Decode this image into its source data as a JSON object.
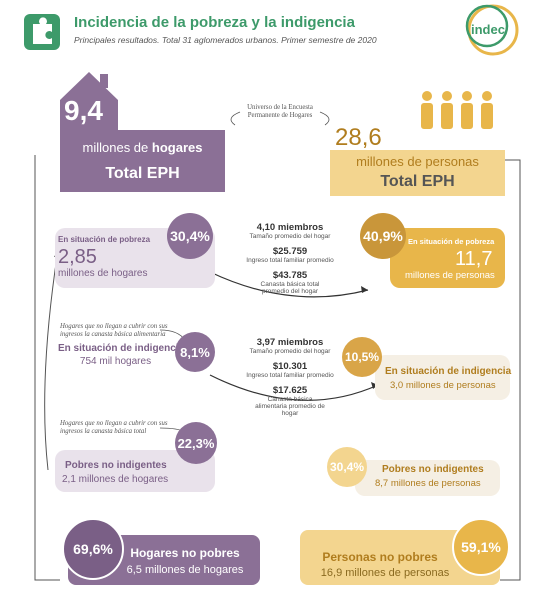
{
  "header": {
    "title": "Incidencia de la pobreza y la indigencia",
    "subtitle": "Principales resultados. Total 31 aglomerados urbanos. Primer semestre de 2020",
    "logo": "indec"
  },
  "hogares_total": {
    "value": "9,4",
    "unit": "millones de",
    "unit_bold": "hogares",
    "label": "Total EPH"
  },
  "universo_note": "Universo de la Encuesta Permanente de Hogares",
  "personas_total": {
    "value": "28,6",
    "unit": "millones de personas",
    "label": "Total EPH"
  },
  "pobreza": {
    "hogares": {
      "pct": "30,4%",
      "label": "En situación de pobreza",
      "value": "2,85",
      "unit": "millones de hogares"
    },
    "stats": [
      {
        "value": "4,10 miembros",
        "label": "Tamaño promedio del hogar"
      },
      {
        "value": "$25.759",
        "label": "Ingreso total familiar promedio"
      },
      {
        "value": "$43.785",
        "label": "Canasta básica total promedio del hogar"
      }
    ],
    "personas": {
      "pct": "40,9%",
      "label": "En situación de pobreza",
      "value": "11,7",
      "unit": "millones de personas"
    }
  },
  "notes": [
    "Hogares que no llegan a cubrir con sus ingresos la canasta básica alimentaria",
    "Hogares que no llegan a cubrir con sus ingresos la canasta básica total"
  ],
  "indigencia": {
    "hogares": {
      "pct": "8,1%",
      "label": "En situación de indigencia",
      "unit": "754 mil hogares"
    },
    "stats": [
      {
        "value": "3,97 miembros",
        "label": "Tamaño promedio del hogar"
      },
      {
        "value": "$10.301",
        "label": "Ingreso total familiar promedio"
      },
      {
        "value": "$17.625",
        "label": "Canasta básica alimentaria promedio de hogar"
      }
    ],
    "personas": {
      "pct": "10,5%",
      "label": "En situación de indigencia",
      "unit": "3,0 millones de personas"
    }
  },
  "no_indigentes": {
    "hogares": {
      "pct": "22,3%",
      "label": "Pobres no indigentes",
      "unit": "2,1 millones de hogares"
    },
    "personas": {
      "pct": "30,4%",
      "label": "Pobres no indigentes",
      "unit": "8,7 millones de personas"
    }
  },
  "no_pobres": {
    "hogares": {
      "pct": "69,6%",
      "label": "Hogares no pobres",
      "unit": "6,5 millones de hogares"
    },
    "personas": {
      "pct": "59,1%",
      "label": "Personas no pobres",
      "unit": "16,9 millones de personas"
    }
  }
}
